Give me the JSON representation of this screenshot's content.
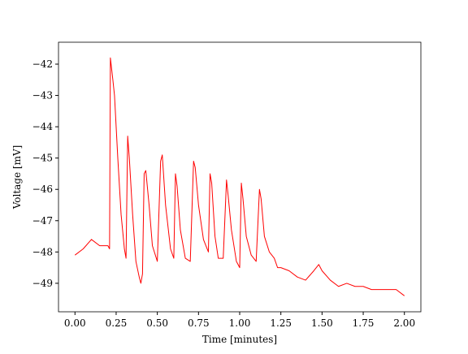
{
  "chart_data": {
    "type": "line",
    "xlabel": "Time [minutes]",
    "ylabel": "Voltage [mV]",
    "x": [
      0.0,
      0.05,
      0.1,
      0.15,
      0.2,
      0.21,
      0.215,
      0.23,
      0.24,
      0.26,
      0.28,
      0.3,
      0.31,
      0.32,
      0.33,
      0.35,
      0.37,
      0.39,
      0.4,
      0.41,
      0.42,
      0.43,
      0.45,
      0.47,
      0.5,
      0.52,
      0.53,
      0.55,
      0.58,
      0.6,
      0.61,
      0.62,
      0.64,
      0.67,
      0.7,
      0.72,
      0.73,
      0.75,
      0.78,
      0.81,
      0.82,
      0.83,
      0.85,
      0.87,
      0.9,
      0.92,
      0.93,
      0.95,
      0.98,
      1.0,
      1.01,
      1.02,
      1.04,
      1.07,
      1.1,
      1.12,
      1.13,
      1.15,
      1.18,
      1.21,
      1.23,
      1.25,
      1.3,
      1.35,
      1.4,
      1.45,
      1.48,
      1.5,
      1.55,
      1.6,
      1.65,
      1.7,
      1.75,
      1.8,
      1.85,
      1.9,
      1.95,
      2.0
    ],
    "series": [
      {
        "color": "#ff0000",
        "values": [
          -48.1,
          -47.9,
          -47.6,
          -47.8,
          -47.8,
          -47.9,
          -41.8,
          -42.5,
          -43.0,
          -45.0,
          -46.8,
          -47.9,
          -48.2,
          -44.3,
          -45.0,
          -46.8,
          -48.3,
          -48.8,
          -49.0,
          -48.7,
          -45.5,
          -45.4,
          -46.5,
          -47.8,
          -48.3,
          -45.1,
          -44.9,
          -46.5,
          -47.9,
          -48.2,
          -45.5,
          -45.9,
          -47.3,
          -48.2,
          -48.3,
          -45.1,
          -45.3,
          -46.5,
          -47.6,
          -48.0,
          -45.5,
          -45.8,
          -47.5,
          -48.2,
          -48.2,
          -45.7,
          -46.2,
          -47.3,
          -48.3,
          -48.5,
          -45.8,
          -46.3,
          -47.5,
          -48.1,
          -48.3,
          -46.0,
          -46.3,
          -47.5,
          -48.0,
          -48.2,
          -48.5,
          -48.5,
          -48.6,
          -48.8,
          -48.9,
          -48.6,
          -48.4,
          -48.6,
          -48.9,
          -49.1,
          -49.0,
          -49.1,
          -49.1,
          -49.2,
          -49.2,
          -49.2,
          -49.2,
          -49.4
        ]
      }
    ],
    "xlim": [
      -0.1,
      2.1
    ],
    "xticks": [
      {
        "value": 0,
        "label": "0.00"
      },
      0.25,
      {
        "value": 0.5,
        "label": "0.50"
      },
      0.75,
      {
        "value": 1,
        "label": "1.00"
      },
      1.25,
      {
        "value": 1.5,
        "label": "1.50"
      },
      1.75,
      {
        "value": 2,
        "label": "2.00"
      }
    ],
    "ylim": [
      -49.91,
      -41.3
    ],
    "yticks": [
      {
        "value": -49,
        "label": "−49"
      },
      {
        "value": -48,
        "label": "−48"
      },
      {
        "value": -47,
        "label": "−47"
      },
      {
        "value": -46,
        "label": "−46"
      },
      {
        "value": -45,
        "label": "−45"
      },
      {
        "value": -44,
        "label": "−44"
      },
      {
        "value": -43,
        "label": "−43"
      },
      {
        "value": -42,
        "label": "−42"
      }
    ]
  }
}
